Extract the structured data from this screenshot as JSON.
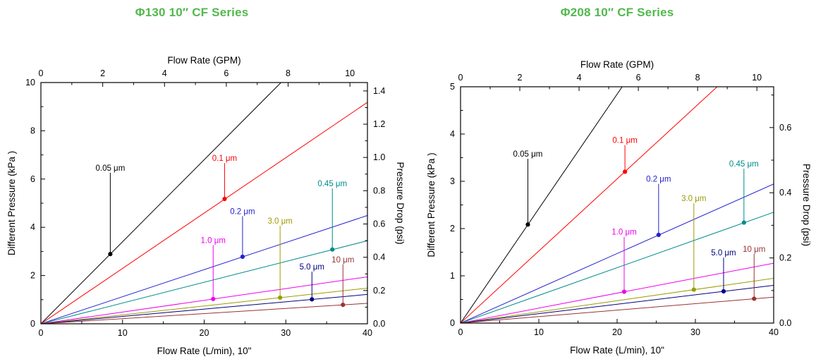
{
  "chart_data": [
    {
      "type": "line",
      "title": "Φ130 10″ CF Series",
      "title_color": "#53b84e",
      "top_axis": {
        "label": "Flow Rate (GPM)",
        "major_ticks": [
          0,
          2,
          4,
          6,
          8,
          10
        ],
        "minor_step": 1,
        "lmin_per_gpm": 3.78541
      },
      "bottom_axis": {
        "label": "Flow Rate (L/min), 10\"",
        "major_ticks": [
          0,
          10,
          20,
          30,
          40
        ],
        "minor_step": 5,
        "range": [
          0,
          40
        ]
      },
      "left_axis": {
        "label": "Different Pressure (kPa )",
        "major_ticks": [
          0,
          2,
          4,
          6,
          8,
          10
        ],
        "minor_step": 1,
        "range": [
          0,
          10
        ]
      },
      "right_axis": {
        "label": "Pressure Drop (psi)",
        "major_tick_labels": [
          "0.0",
          "0.2",
          "0.4",
          "0.6",
          "0.8",
          "1.0",
          "1.2",
          "1.4"
        ],
        "major_step": 0.2,
        "minor_step": 0.1,
        "psi_per_kpa": 0.145038
      },
      "series": [
        {
          "name": "0.05 μm",
          "color": "#000000",
          "kpa_at_40lmin": 13.6,
          "marker_x_lmin": 8.5,
          "label_y_kpa": 6.35
        },
        {
          "name": "0.1 μm",
          "color": "#ff0000",
          "kpa_at_40lmin": 9.2,
          "marker_x_lmin": 22.5,
          "label_y_kpa": 6.75
        },
        {
          "name": "0.2 μm",
          "color": "#2222cc",
          "kpa_at_40lmin": 4.5,
          "marker_x_lmin": 24.7,
          "label_y_kpa": 4.55
        },
        {
          "name": "0.45 μm",
          "color": "#008b8b",
          "kpa_at_40lmin": 3.45,
          "marker_x_lmin": 35.7,
          "label_y_kpa": 5.7
        },
        {
          "name": "1.0 μm",
          "color": "#ee00ee",
          "kpa_at_40lmin": 1.95,
          "marker_x_lmin": 21.1,
          "label_y_kpa": 3.35
        },
        {
          "name": "3.0 μm",
          "color": "#9b9b00",
          "kpa_at_40lmin": 1.48,
          "marker_x_lmin": 29.3,
          "label_y_kpa": 4.15
        },
        {
          "name": "5.0 μm",
          "color": "#000080",
          "kpa_at_40lmin": 1.22,
          "marker_x_lmin": 33.2,
          "label_y_kpa": 2.25
        },
        {
          "name": "10 μm",
          "color": "#993333",
          "kpa_at_40lmin": 0.85,
          "marker_x_lmin": 37.0,
          "label_y_kpa": 2.55
        }
      ]
    },
    {
      "type": "line",
      "title": "Φ208 10″ CF Series",
      "title_color": "#53b84e",
      "top_axis": {
        "label": "Flow Rate (GPM)",
        "major_ticks": [
          0,
          2,
          4,
          6,
          8,
          10
        ],
        "minor_step": 1,
        "lmin_per_gpm": 3.78541
      },
      "bottom_axis": {
        "label": "Flow Rate (L/min), 10\"",
        "major_ticks": [
          0,
          10,
          20,
          30,
          40
        ],
        "minor_step": 5,
        "range": [
          0,
          40
        ]
      },
      "left_axis": {
        "label": "Different Pressure (kPa )",
        "major_ticks": [
          0,
          1,
          2,
          3,
          4,
          5
        ],
        "minor_step": 0.5,
        "range": [
          0,
          5
        ]
      },
      "right_axis": {
        "label": "Pressure Drop (psi)",
        "major_tick_labels": [
          "0.0",
          "0.2",
          "0.4",
          "0.6"
        ],
        "major_step": 0.2,
        "minor_step": 0.1,
        "psi_per_kpa": 0.145038
      },
      "series": [
        {
          "name": "0.05 μm",
          "color": "#000000",
          "kpa_at_40lmin": 9.7,
          "marker_x_lmin": 8.6,
          "label_y_kpa": 3.52
        },
        {
          "name": "0.1 μm",
          "color": "#ff0000",
          "kpa_at_40lmin": 6.1,
          "marker_x_lmin": 21.0,
          "label_y_kpa": 3.81
        },
        {
          "name": "0.2 μm",
          "color": "#2222cc",
          "kpa_at_40lmin": 2.95,
          "marker_x_lmin": 25.3,
          "label_y_kpa": 2.99
        },
        {
          "name": "0.45 μm",
          "color": "#008b8b",
          "kpa_at_40lmin": 2.35,
          "marker_x_lmin": 36.2,
          "label_y_kpa": 3.31
        },
        {
          "name": "1.0 μm",
          "color": "#ee00ee",
          "kpa_at_40lmin": 1.27,
          "marker_x_lmin": 20.9,
          "label_y_kpa": 1.87
        },
        {
          "name": "3.0 μm",
          "color": "#9b9b00",
          "kpa_at_40lmin": 0.95,
          "marker_x_lmin": 29.8,
          "label_y_kpa": 2.58
        },
        {
          "name": "5.0 μm",
          "color": "#000080",
          "kpa_at_40lmin": 0.8,
          "marker_x_lmin": 33.6,
          "label_y_kpa": 1.43
        },
        {
          "name": "10 μm",
          "color": "#993333",
          "kpa_at_40lmin": 0.55,
          "marker_x_lmin": 37.5,
          "label_y_kpa": 1.51
        }
      ]
    }
  ]
}
